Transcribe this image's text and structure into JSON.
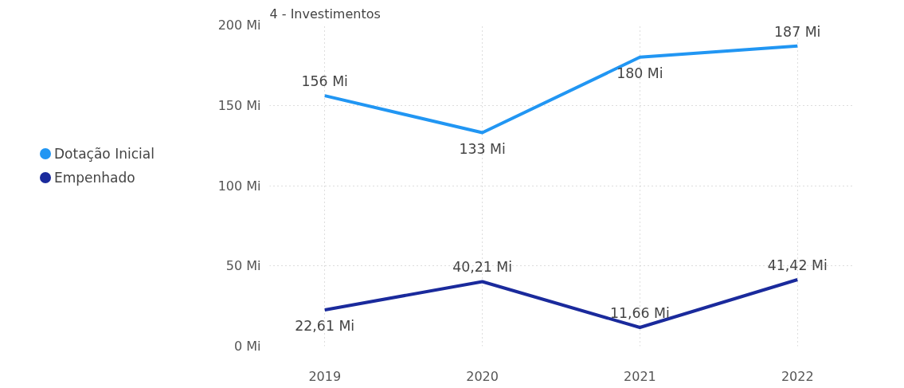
{
  "chart_data": {
    "type": "line",
    "title": "4 - Investimentos",
    "categories": [
      "2019",
      "2020",
      "2021",
      "2022"
    ],
    "series": [
      {
        "name": "Dotação Inicial",
        "color": "#2196f3",
        "values": [
          156,
          133,
          180,
          187
        ],
        "value_labels": [
          "156 Mi",
          "133 Mi",
          "180 Mi",
          "187 Mi"
        ]
      },
      {
        "name": "Empenhado",
        "color": "#1a2a9c",
        "values": [
          22.61,
          40.21,
          11.66,
          41.42
        ],
        "value_labels": [
          "22,61 Mi",
          "40,21 Mi",
          "11,66 Mi",
          "41,42 Mi"
        ]
      }
    ],
    "ylim": [
      0,
      200
    ],
    "yticks": [
      {
        "value": 0,
        "label": "0 Mi"
      },
      {
        "value": 50,
        "label": "50 Mi"
      },
      {
        "value": 100,
        "label": "100 Mi"
      },
      {
        "value": 150,
        "label": "150 Mi"
      },
      {
        "value": 200,
        "label": "200 Mi"
      }
    ],
    "grid": true,
    "legend": "left"
  }
}
